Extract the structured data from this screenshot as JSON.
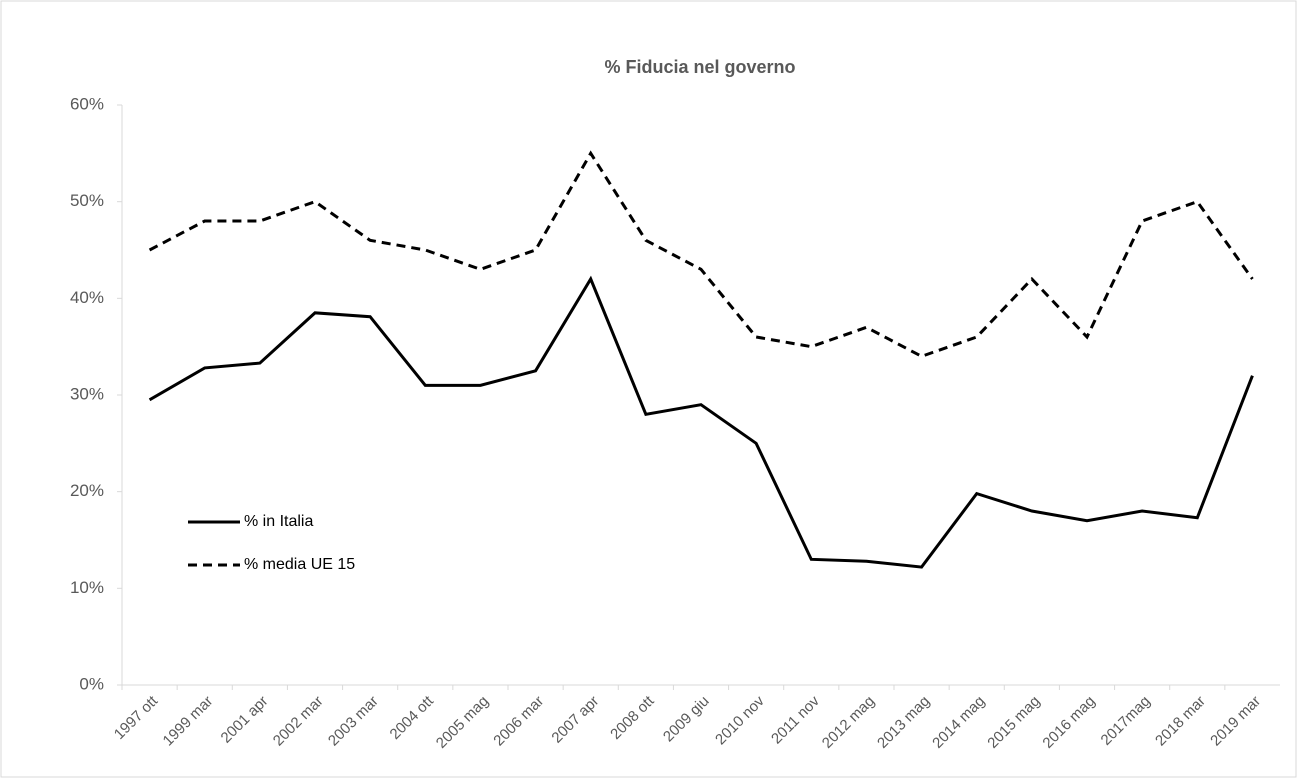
{
  "chart_data": {
    "type": "line",
    "title": "% Fiducia nel governo",
    "categories": [
      "1997 ott",
      "1999 mar",
      "2001 apr",
      "2002 mar",
      "2003 mar",
      "2004 ott",
      "2005 mag",
      "2006 mar",
      "2007 apr",
      "2008 ott",
      "2009 giu",
      "2010 nov",
      "2011 nov",
      "2012 mag",
      "2013 mag",
      "2014 mag",
      "2015 mag",
      "2016 mag",
      "2017mag",
      "2018 mar",
      "2019 mar"
    ],
    "series": [
      {
        "name": "%  in Italia",
        "color": "#000000",
        "line_style": "solid",
        "values": [
          29.5,
          32.8,
          33.3,
          38.5,
          38.1,
          31,
          31,
          32.5,
          42,
          28,
          29,
          25,
          13,
          12.8,
          12.2,
          19.8,
          18,
          17,
          18,
          17.3,
          32
        ]
      },
      {
        "name": "% media UE 15",
        "color": "#000000",
        "line_style": "dashed",
        "values": [
          45,
          48,
          48,
          50,
          46,
          45,
          43,
          45,
          55,
          46,
          43,
          36,
          35,
          37,
          34,
          36,
          42,
          36,
          48,
          50,
          42
        ]
      }
    ],
    "ylim": [
      0,
      60
    ],
    "yticks": [
      {
        "value": 0,
        "label": "0%"
      },
      {
        "value": 10,
        "label": "10%"
      },
      {
        "value": 20,
        "label": "20%"
      },
      {
        "value": 30,
        "label": "30%"
      },
      {
        "value": 40,
        "label": "40%"
      },
      {
        "value": 50,
        "label": "50%"
      },
      {
        "value": 60,
        "label": "60%"
      }
    ],
    "grid": false,
    "legend": "lower left"
  }
}
